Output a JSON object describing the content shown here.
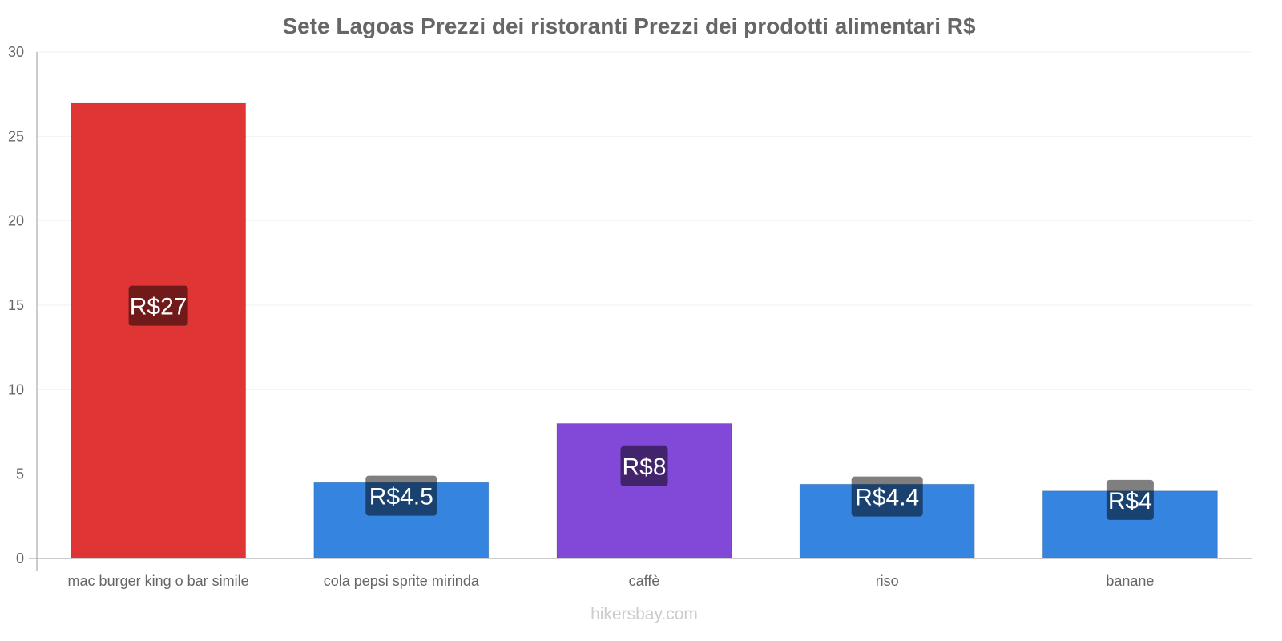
{
  "chart_data": {
    "type": "bar",
    "title": "Sete Lagoas Prezzi dei ristoranti Prezzi dei prodotti alimentari R$",
    "xlabel": "",
    "ylabel": "",
    "ylim": [
      0,
      30
    ],
    "yticks": [
      0,
      5,
      10,
      15,
      20,
      25,
      30
    ],
    "grid": true,
    "categories": [
      "mac burger king o bar simile",
      "cola pepsi sprite mirinda",
      "caffè",
      "riso",
      "banane"
    ],
    "values": [
      27,
      4.5,
      8,
      4.4,
      4
    ],
    "data_labels": [
      "R$27",
      "R$4.5",
      "R$8",
      "R$4.4",
      "R$4"
    ],
    "colors": [
      "#e03535",
      "#3584e0",
      "#8249d8",
      "#3584e0",
      "#3584e0"
    ]
  },
  "watermark": "hikersbay.com"
}
